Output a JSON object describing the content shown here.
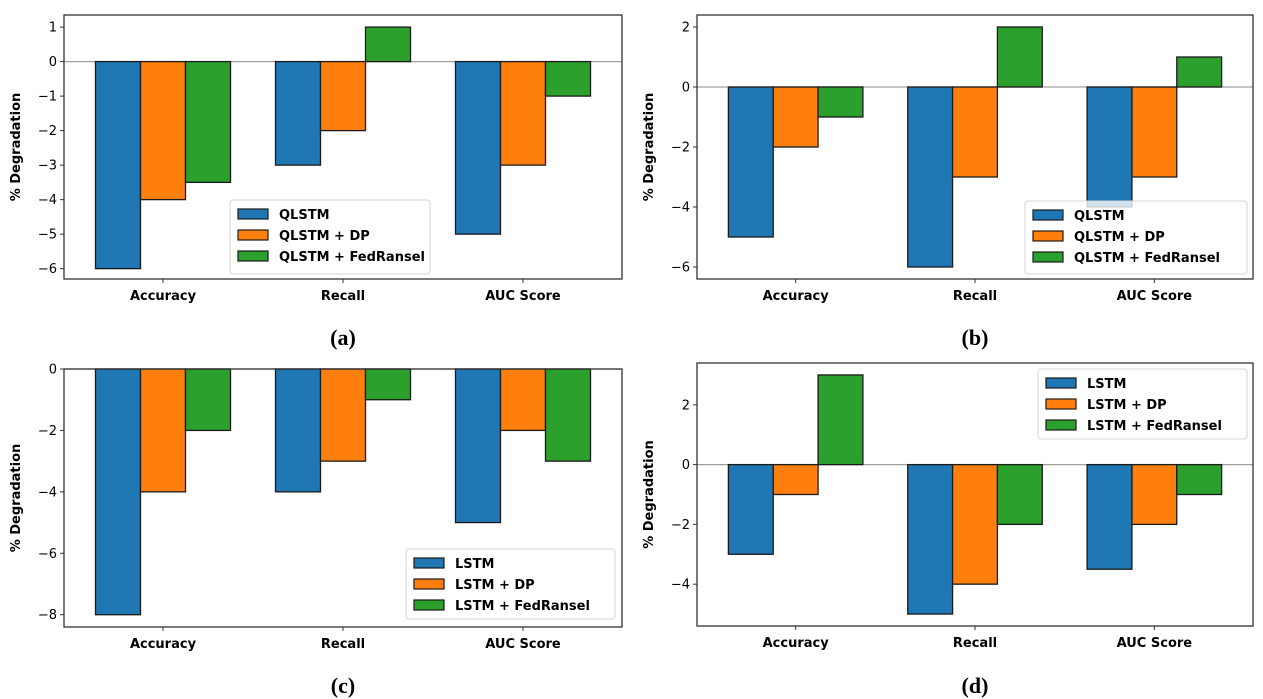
{
  "colors": {
    "series": [
      "#1f77b4",
      "#ff7f0e",
      "#2ca02c"
    ],
    "edge": "#1a1a1a",
    "zero_line": "#a0a0a0",
    "axis": "#333333"
  },
  "chart_data": [
    {
      "type": "bar",
      "panel": "(a)",
      "caption": "(a)",
      "categories": [
        "Accuracy",
        "Recall",
        "AUC Score"
      ],
      "series": [
        {
          "name": "QLSTM",
          "values": [
            -6,
            -3,
            -5
          ]
        },
        {
          "name": "QLSTM + DP",
          "values": [
            -4,
            -2,
            -3
          ]
        },
        {
          "name": "QLSTM + FedRansel",
          "values": [
            -3.5,
            1,
            -1
          ]
        }
      ],
      "xlabel": "",
      "ylabel": "% Degradation",
      "ylim": [
        -6.3,
        1.35
      ],
      "yticks": [
        1,
        0,
        -1,
        -2,
        -3,
        -4,
        -5,
        -6
      ],
      "legend": "lower-right",
      "grid": false
    },
    {
      "type": "bar",
      "panel": "(b)",
      "caption": "(b)",
      "categories": [
        "Accuracy",
        "Recall",
        "AUC Score"
      ],
      "series": [
        {
          "name": "QLSTM",
          "values": [
            -5,
            -6,
            -4
          ]
        },
        {
          "name": "QLSTM + DP",
          "values": [
            -2,
            -3,
            -3
          ]
        },
        {
          "name": "QLSTM + FedRansel",
          "values": [
            -1,
            2,
            1
          ]
        }
      ],
      "xlabel": "",
      "ylabel": "% Degradation",
      "ylim": [
        -6.4,
        2.4
      ],
      "yticks": [
        2,
        0,
        -2,
        -4,
        -6
      ],
      "legend": "lower-right",
      "grid": false
    },
    {
      "type": "bar",
      "panel": "(c)",
      "caption": "(c)",
      "categories": [
        "Accuracy",
        "Recall",
        "AUC Score"
      ],
      "series": [
        {
          "name": "LSTM",
          "values": [
            -8,
            -4,
            -5
          ]
        },
        {
          "name": "LSTM + DP",
          "values": [
            -4,
            -3,
            -2
          ]
        },
        {
          "name": "LSTM + FedRansel",
          "values": [
            -2,
            -1,
            -3
          ]
        }
      ],
      "xlabel": "",
      "ylabel": "% Degradation",
      "ylim": [
        -8.4,
        0
      ],
      "yticks": [
        0,
        -2,
        -4,
        -6,
        -8
      ],
      "legend": "lower-right",
      "grid": false
    },
    {
      "type": "bar",
      "panel": "(d)",
      "caption": "(d)",
      "categories": [
        "Accuracy",
        "Recall",
        "AUC Score"
      ],
      "series": [
        {
          "name": "LSTM",
          "values": [
            -3,
            -5,
            -3.5
          ]
        },
        {
          "name": "LSTM + DP",
          "values": [
            -1,
            -4,
            -2
          ]
        },
        {
          "name": "LSTM + FedRansel",
          "values": [
            3,
            -2,
            -1
          ]
        }
      ],
      "xlabel": "",
      "ylabel": "% Degradation",
      "ylim": [
        -5.4,
        3.4
      ],
      "yticks": [
        2,
        0,
        -2,
        -4
      ],
      "legend": "upper-right",
      "grid": false
    }
  ]
}
